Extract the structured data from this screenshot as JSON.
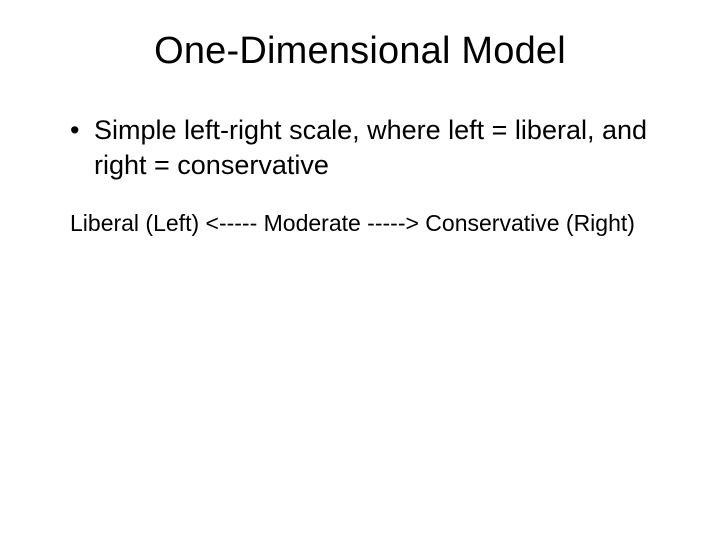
{
  "slide": {
    "title": "One-Dimensional Model",
    "title_fontsize": 38,
    "title_color": "#000000",
    "background_color": "#ffffff",
    "bullets": [
      {
        "text": "Simple left-right scale, where left = liberal, and right = conservative"
      }
    ],
    "bullet_fontsize": 27,
    "scale_line": "Liberal (Left) <----- Moderate -----> Conservative (Right)",
    "scale_fontsize": 23
  }
}
